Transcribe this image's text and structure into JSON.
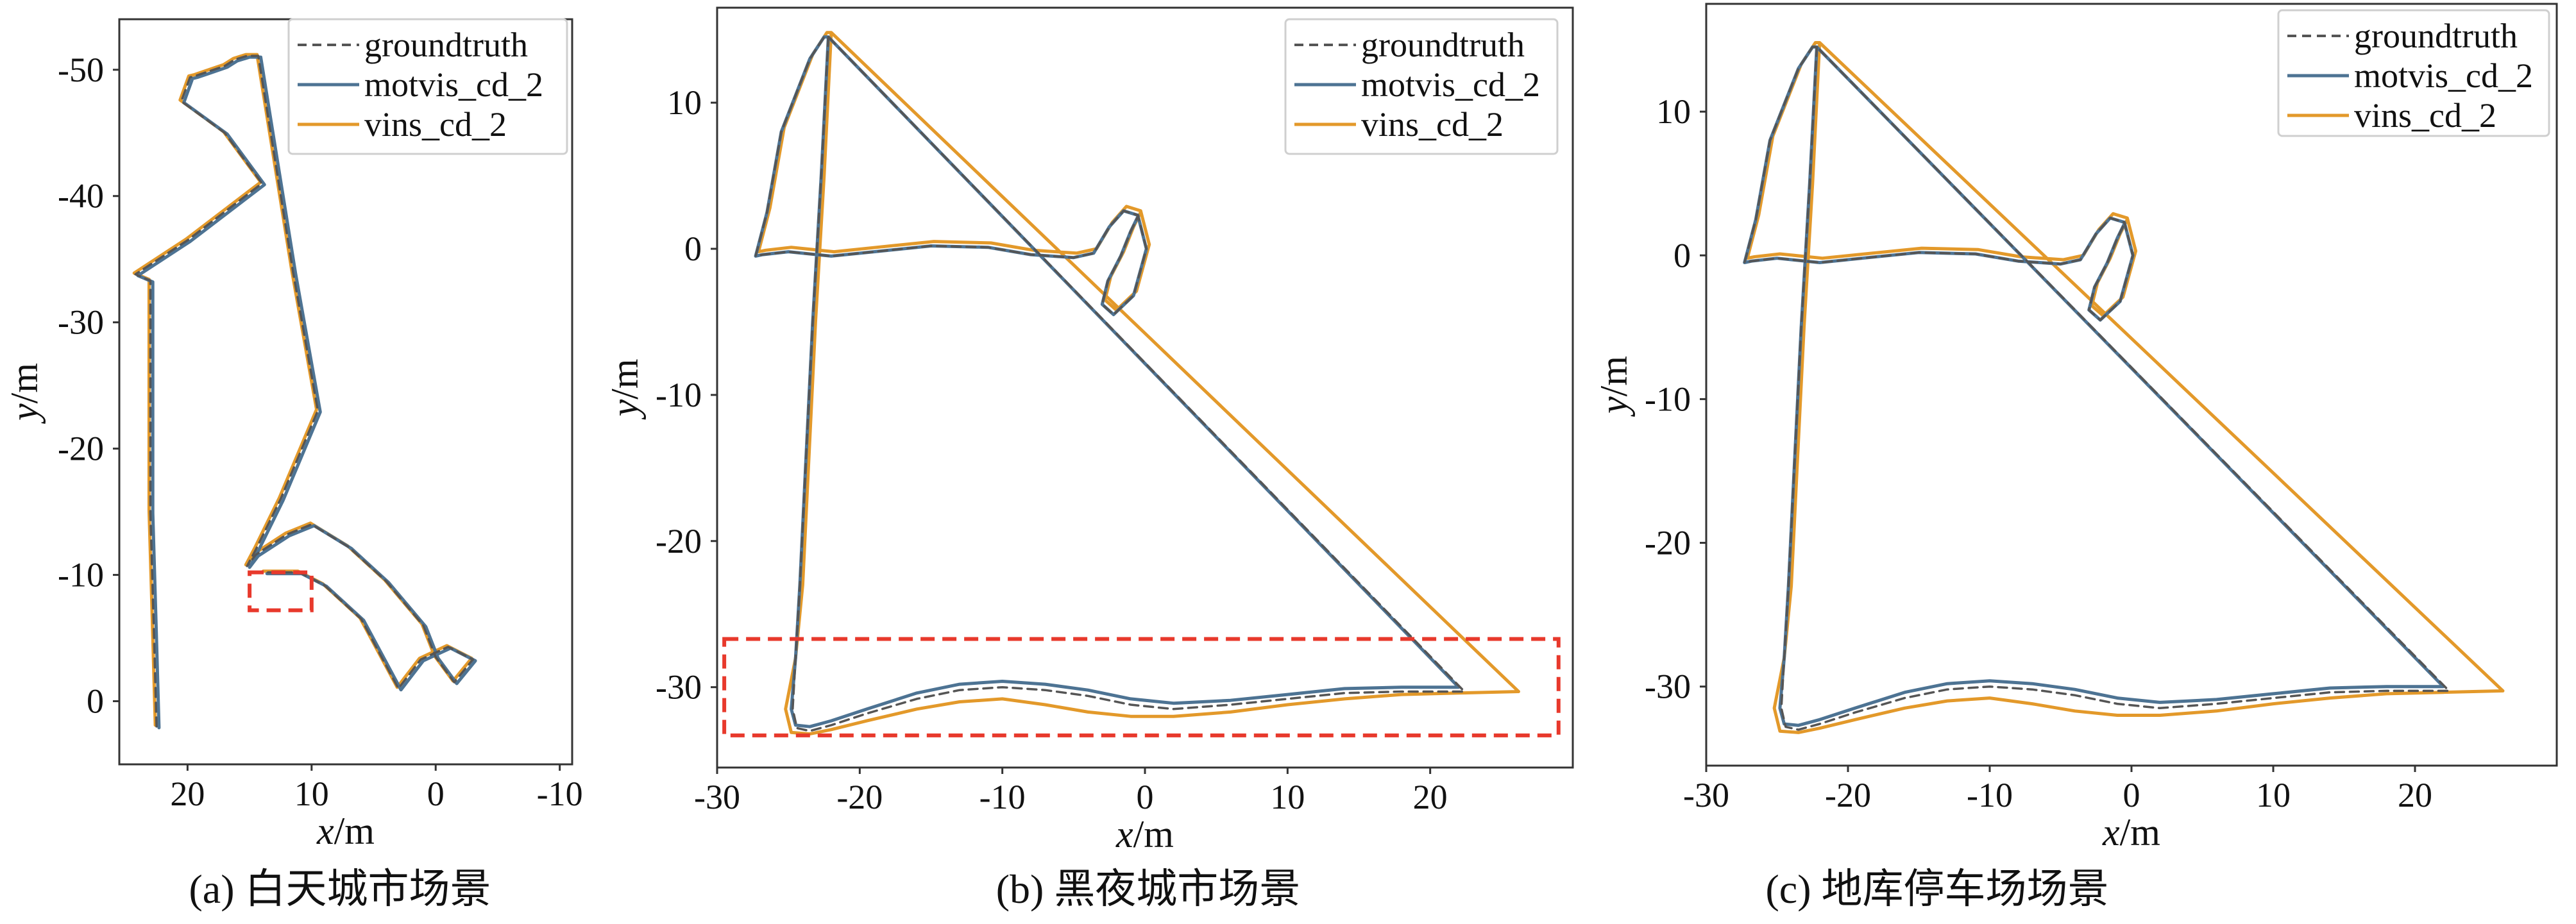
{
  "colors": {
    "groundtruth": "#555555",
    "motvis": "#4d7393",
    "vins": "#e3992a",
    "highlight": "#e8392c",
    "frame": "#333333"
  },
  "legend_labels": [
    "groundtruth",
    "motvis_cd_2",
    "vins_cd_2"
  ],
  "chart_data": [
    {
      "type": "line",
      "caption": "(a) 白天城市场景",
      "xlabel": "x/m",
      "ylabel": "y/m",
      "xlim": [
        25.5,
        -11
      ],
      "ylim": [
        5,
        -54
      ],
      "xticks": [
        20,
        10,
        0,
        -10
      ],
      "yticks": [
        -50,
        -40,
        -30,
        -20,
        -10,
        0
      ],
      "grid": false,
      "legend_position": "top-right",
      "highlight_box": {
        "x": [
          15,
          10
        ],
        "y": [
          -10.2,
          -7.2
        ]
      },
      "series": [
        {
          "name": "groundtruth",
          "style": "dashed",
          "x": [
            22.5,
            22.7,
            23.0,
            23.0,
            23.0,
            24.2,
            20,
            14,
            17,
            20.5,
            19.8,
            19.4,
            18.5,
            18.5,
            17.0,
            16.2,
            15.2,
            14.3,
            11.5,
            9.5,
            12.5,
            14.5,
            15.2,
            14.5,
            12,
            10,
            7,
            4,
            1,
            0,
            -1.5,
            -3,
            -1,
            1.2,
            3,
            6,
            9,
            11,
            13.8,
            13.8
          ],
          "y": [
            2,
            -5,
            -15,
            -25,
            -33.3,
            -33.8,
            -36.5,
            -41,
            -45,
            -47.5,
            -49.4,
            -49.5,
            -49.8,
            -49.8,
            -50.3,
            -50.8,
            -51.1,
            -51.1,
            -34,
            -23,
            -16,
            -12,
            -10.7,
            -11.6,
            -13.2,
            -14,
            -12.2,
            -9.5,
            -6,
            -3.5,
            -1.5,
            -3.3,
            -4.3,
            -3.3,
            -1,
            -6.5,
            -9.2,
            -10.2,
            -10.2,
            -10.2
          ]
        },
        {
          "name": "motvis_cd_2",
          "style": "solid",
          "x": [
            22.3,
            22.5,
            22.8,
            22.8,
            22.8,
            24.0,
            19.8,
            13.8,
            16.8,
            20.3,
            19.6,
            19.2,
            18.3,
            18.3,
            16.8,
            16.0,
            15.0,
            14.1,
            11.3,
            9.3,
            12.3,
            14.3,
            15.0,
            14.3,
            11.8,
            9.8,
            6.8,
            3.8,
            0.8,
            -0.2,
            -1.7,
            -3.2,
            -1.2,
            1.0,
            2.8,
            5.8,
            8.8,
            10.8,
            13.6,
            13.6
          ],
          "y": [
            2.1,
            -4.9,
            -14.9,
            -24.9,
            -33.2,
            -33.7,
            -36.4,
            -40.9,
            -44.9,
            -47.4,
            -49.3,
            -49.4,
            -49.7,
            -49.7,
            -50.2,
            -50.7,
            -51.0,
            -51.0,
            -33.9,
            -22.9,
            -15.9,
            -11.9,
            -10.6,
            -11.5,
            -13.1,
            -13.9,
            -12.1,
            -9.4,
            -5.9,
            -3.4,
            -1.4,
            -3.2,
            -4.2,
            -3.2,
            -0.9,
            -6.4,
            -9.1,
            -10.1,
            -10.1,
            -10.1
          ]
        },
        {
          "name": "vins_cd_2",
          "style": "solid",
          "x": [
            22.6,
            22.8,
            23.1,
            23.1,
            23.1,
            24.3,
            20.1,
            14.1,
            17.1,
            20.6,
            19.9,
            19.5,
            18.6,
            18.6,
            17.1,
            16.3,
            15.3,
            14.4,
            11.6,
            9.6,
            12.6,
            14.6,
            15.3,
            14.6,
            12.1,
            10.1,
            7.1,
            4.1,
            1.1,
            0.1,
            -1.4,
            -2.9,
            -0.9,
            1.3,
            3.1,
            6.1,
            9.1,
            11.1,
            13.9,
            13.9
          ],
          "y": [
            1.9,
            -5.1,
            -15.1,
            -25.1,
            -33.4,
            -33.9,
            -36.6,
            -41.1,
            -45.1,
            -47.6,
            -49.5,
            -49.6,
            -49.9,
            -49.9,
            -50.4,
            -50.9,
            -51.2,
            -51.2,
            -34.1,
            -23.1,
            -16.1,
            -12.1,
            -10.8,
            -11.7,
            -13.3,
            -14.1,
            -12.3,
            -9.6,
            -6.1,
            -3.6,
            -1.6,
            -3.4,
            -4.4,
            -3.4,
            -1.1,
            -6.6,
            -9.3,
            -10.3,
            -10.3,
            -10.3
          ]
        }
      ]
    },
    {
      "type": "line",
      "caption": "(b) 黑夜城市场景",
      "xlabel": "x/m",
      "ylabel": "y/m",
      "xlim": [
        -30,
        30
      ],
      "ylim": [
        -35.5,
        16.5
      ],
      "xticks": [
        -30,
        -20,
        -10,
        0,
        10,
        20
      ],
      "yticks": [
        10,
        0,
        -10,
        -20,
        -30
      ],
      "grid": false,
      "legend_position": "top-right",
      "highlight_box": {
        "x": [
          -29.5,
          29
        ],
        "y": [
          -26.7,
          -33.3
        ]
      },
      "series": [
        {
          "name": "groundtruth",
          "style": "dashed",
          "x": [
            -22.2,
            -22.7,
            -23.3,
            -23.8,
            -24.2,
            -24.5,
            -24.7,
            -24.4,
            -23.5,
            -22,
            -19.5,
            -16,
            -13,
            -10,
            -7,
            -4,
            -1,
            2,
            6,
            10,
            14,
            18,
            22.4,
            22.4,
            -22.2,
            -22.5,
            -23.5,
            -25.5,
            -26.5,
            -27.3,
            -26.8,
            -25,
            -22,
            -19,
            -15,
            -11,
            -8,
            -5,
            -3.6,
            -2.5,
            -1.5,
            -0.5,
            0.1,
            -0.8,
            -2.2,
            -3,
            -2.6,
            -1.7,
            -1,
            -0.5
          ],
          "y": [
            14.5,
            5,
            -5,
            -15,
            -23,
            -28,
            -31.5,
            -32.8,
            -33,
            -32.6,
            -31.8,
            -30.8,
            -30.2,
            -30,
            -30.2,
            -30.6,
            -31.2,
            -31.5,
            -31.2,
            -30.8,
            -30.4,
            -30.3,
            -30.3,
            -30.3,
            14.5,
            14.5,
            13,
            8,
            2.5,
            -0.5,
            -0.4,
            -0.2,
            -0.5,
            -0.2,
            0.2,
            0.1,
            -0.4,
            -0.6,
            -0.3,
            1.5,
            2.6,
            2.3,
            0,
            -3.2,
            -4.5,
            -3.8,
            -2.2,
            -0.5,
            1.2,
            2.2
          ]
        },
        {
          "name": "motvis_cd_2",
          "style": "solid",
          "x": [
            -22.2,
            -22.7,
            -23.3,
            -23.8,
            -24.2,
            -24.5,
            -24.8,
            -24.5,
            -23.5,
            -22,
            -19.5,
            -16,
            -13,
            -10,
            -7,
            -4,
            -1,
            2,
            6,
            10,
            14,
            18,
            22.0,
            22.0,
            -22.2,
            -22.5,
            -23.5,
            -25.5,
            -26.5,
            -27.3,
            -26.8,
            -25,
            -22,
            -19,
            -15,
            -11,
            -8,
            -5,
            -3.6,
            -2.5,
            -1.5,
            -0.5,
            0.1,
            -0.8,
            -2.2,
            -3,
            -2.6,
            -1.7,
            -1,
            -0.5
          ],
          "y": [
            14.5,
            5,
            -5,
            -15,
            -23,
            -28,
            -31.5,
            -32.6,
            -32.7,
            -32.3,
            -31.5,
            -30.4,
            -29.8,
            -29.6,
            -29.8,
            -30.2,
            -30.8,
            -31.1,
            -30.9,
            -30.5,
            -30.1,
            -30.0,
            -30.0,
            -30.0,
            14.5,
            14.5,
            13,
            8,
            2.5,
            -0.5,
            -0.4,
            -0.2,
            -0.5,
            -0.2,
            0.2,
            0.1,
            -0.4,
            -0.6,
            -0.3,
            1.5,
            2.6,
            2.3,
            0,
            -3.2,
            -4.5,
            -3.8,
            -2.2,
            -0.5,
            1.2,
            2.2
          ]
        },
        {
          "name": "vins_cd_2",
          "style": "solid",
          "x": [
            -22.0,
            -22.5,
            -23.1,
            -23.6,
            -24.0,
            -24.5,
            -25.2,
            -24.8,
            -23.5,
            -22,
            -19.5,
            -16,
            -13,
            -10,
            -7,
            -4,
            -1,
            2,
            6,
            10,
            14,
            18,
            22,
            26.2,
            -22.0,
            -22.3,
            -23.3,
            -25.3,
            -26.3,
            -27.1,
            -26.6,
            -24.8,
            -21.8,
            -18.8,
            -14.8,
            -10.8,
            -7.8,
            -4.8,
            -3.4,
            -2.3,
            -1.3,
            -0.3,
            0.3,
            -0.6,
            -2.0,
            -2.8,
            -2.4,
            -1.5,
            -0.8,
            -0.3
          ],
          "y": [
            14.8,
            5,
            -5,
            -15,
            -23,
            -28,
            -31.5,
            -33.1,
            -33.2,
            -32.9,
            -32.3,
            -31.5,
            -31.0,
            -30.8,
            -31.2,
            -31.7,
            -32.0,
            -32.0,
            -31.7,
            -31.2,
            -30.8,
            -30.5,
            -30.4,
            -30.3,
            14.8,
            14.8,
            13.3,
            8.3,
            2.8,
            -0.2,
            -0.1,
            0.1,
            -0.2,
            0.1,
            0.5,
            0.4,
            -0.1,
            -0.3,
            0,
            1.8,
            2.9,
            2.6,
            0.3,
            -2.9,
            -4.2,
            -3.5,
            -1.9,
            -0.2,
            1.5,
            2.5
          ]
        }
      ]
    },
    {
      "type": "line",
      "caption": "(c) 地库停车场场景",
      "xlabel": "x/m",
      "ylabel": "y/m",
      "xlim": [
        -30,
        30
      ],
      "ylim": [
        -35.5,
        17.5
      ],
      "xticks": [
        -30,
        -20,
        -10,
        0,
        10,
        20
      ],
      "yticks": [
        10,
        0,
        -10,
        -20,
        -30
      ],
      "grid": false,
      "legend_position": "top-right",
      "highlight_box": null,
      "series": [
        {
          "name": "groundtruth",
          "style": "dashed",
          "x": [
            -22.2,
            -22.7,
            -23.3,
            -23.8,
            -24.2,
            -24.5,
            -24.7,
            -24.4,
            -23.5,
            -22,
            -19.5,
            -16,
            -13,
            -10,
            -7,
            -4,
            -1,
            2,
            6,
            10,
            14,
            18,
            22.4,
            22.4,
            -22.2,
            -22.5,
            -23.5,
            -25.5,
            -26.5,
            -27.3,
            -26.8,
            -25,
            -22,
            -19,
            -15,
            -11,
            -8,
            -5,
            -3.6,
            -2.5,
            -1.5,
            -0.5,
            0.1,
            -0.8,
            -2.2,
            -3,
            -2.6,
            -1.7,
            -1,
            -0.5
          ],
          "y": [
            14.5,
            5,
            -5,
            -15,
            -23,
            -28,
            -31.5,
            -32.8,
            -33,
            -32.6,
            -31.8,
            -30.8,
            -30.2,
            -30,
            -30.2,
            -30.6,
            -31.2,
            -31.5,
            -31.2,
            -30.8,
            -30.4,
            -30.3,
            -30.3,
            -30.3,
            14.5,
            14.5,
            13,
            8,
            2.5,
            -0.5,
            -0.4,
            -0.2,
            -0.5,
            -0.2,
            0.2,
            0.1,
            -0.4,
            -0.6,
            -0.3,
            1.5,
            2.6,
            2.3,
            0,
            -3.2,
            -4.5,
            -3.8,
            -2.2,
            -0.5,
            1.2,
            2.2
          ]
        },
        {
          "name": "motvis_cd_2",
          "style": "solid",
          "x": [
            -22.2,
            -22.7,
            -23.3,
            -23.8,
            -24.2,
            -24.5,
            -24.8,
            -24.5,
            -23.5,
            -22,
            -19.5,
            -16,
            -13,
            -10,
            -7,
            -4,
            -1,
            2,
            6,
            10,
            14,
            18,
            22.0,
            22.0,
            -22.2,
            -22.5,
            -23.5,
            -25.5,
            -26.5,
            -27.3,
            -26.8,
            -25,
            -22,
            -19,
            -15,
            -11,
            -8,
            -5,
            -3.6,
            -2.5,
            -1.5,
            -0.5,
            0.1,
            -0.8,
            -2.2,
            -3,
            -2.6,
            -1.7,
            -1,
            -0.5
          ],
          "y": [
            14.5,
            5,
            -5,
            -15,
            -23,
            -28,
            -31.5,
            -32.6,
            -32.7,
            -32.3,
            -31.5,
            -30.4,
            -29.8,
            -29.6,
            -29.8,
            -30.2,
            -30.8,
            -31.1,
            -30.9,
            -30.5,
            -30.1,
            -30.0,
            -30.0,
            -30.0,
            14.5,
            14.5,
            13,
            8,
            2.5,
            -0.5,
            -0.4,
            -0.2,
            -0.5,
            -0.2,
            0.2,
            0.1,
            -0.4,
            -0.6,
            -0.3,
            1.5,
            2.6,
            2.3,
            0,
            -3.2,
            -4.5,
            -3.8,
            -2.2,
            -0.5,
            1.2,
            2.2
          ]
        },
        {
          "name": "vins_cd_2",
          "style": "solid",
          "x": [
            -22.0,
            -22.5,
            -23.1,
            -23.6,
            -24.0,
            -24.5,
            -25.2,
            -24.8,
            -23.5,
            -22,
            -19.5,
            -16,
            -13,
            -10,
            -7,
            -4,
            -1,
            2,
            6,
            10,
            14,
            18,
            22,
            26.2,
            -22.0,
            -22.3,
            -23.3,
            -25.3,
            -26.3,
            -27.1,
            -26.6,
            -24.8,
            -21.8,
            -18.8,
            -14.8,
            -10.8,
            -7.8,
            -4.8,
            -3.4,
            -2.3,
            -1.3,
            -0.3,
            0.3,
            -0.6,
            -2.0,
            -2.8,
            -2.4,
            -1.5,
            -0.8,
            -0.3
          ],
          "y": [
            14.8,
            5,
            -5,
            -15,
            -23,
            -28,
            -31.5,
            -33.1,
            -33.2,
            -32.9,
            -32.3,
            -31.5,
            -31.0,
            -30.8,
            -31.2,
            -31.7,
            -32.0,
            -32.0,
            -31.7,
            -31.2,
            -30.8,
            -30.5,
            -30.4,
            -30.3,
            14.8,
            14.8,
            13.3,
            8.3,
            2.8,
            -0.2,
            -0.1,
            0.1,
            -0.2,
            0.1,
            0.5,
            0.4,
            -0.1,
            -0.3,
            0,
            1.8,
            2.9,
            2.6,
            0.3,
            -2.9,
            -4.2,
            -3.5,
            -1.9,
            -0.2,
            1.5,
            2.5
          ]
        }
      ]
    }
  ]
}
